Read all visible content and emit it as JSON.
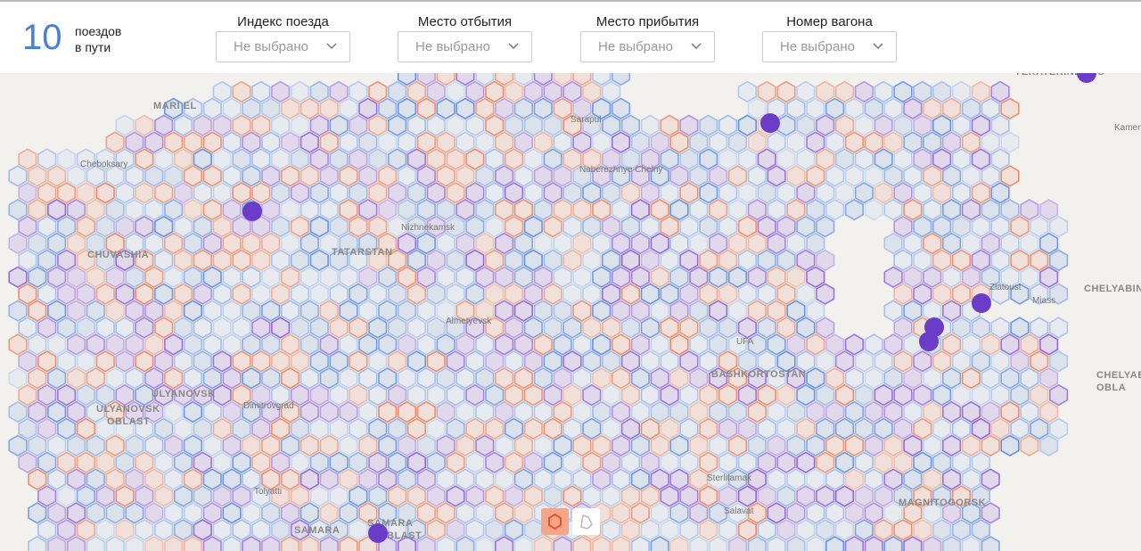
{
  "header": {
    "count": "10",
    "count_caption_line1": "поездов",
    "count_caption_line2": "в пути",
    "filters": [
      {
        "label": "Индекс поезда",
        "value": "Не выбрано"
      },
      {
        "label": "Место отбытия",
        "value": "Не выбрано"
      },
      {
        "label": "Место прибытия",
        "value": "Не выбрано"
      },
      {
        "label": "Номер вагона",
        "value": "Не выбрано"
      }
    ]
  },
  "map": {
    "labels": [
      "MARI EL",
      "Cheboksary",
      "CHUVASHIA",
      "TATARSTAN",
      "Nizhnekamsk",
      "Naberezhnye Chelny",
      "Sarapul",
      "Almetyevsk",
      "ULYANOVSK",
      "ULYANOVSK",
      "OBLAST",
      "Dimitrovgrad",
      "Tolyatti",
      "SAMARA",
      "SAMARA",
      "OBLAST",
      "UFA",
      "BASHKORTOSTAN",
      "Sterlitamak",
      "Salavat",
      "MAGNITOGORSK",
      "Zlatoust",
      "Miass",
      "CHELYABINSK",
      "CHELYAB",
      "OBLA",
      "YEKATERINBURG",
      "Kamensk"
    ]
  }
}
